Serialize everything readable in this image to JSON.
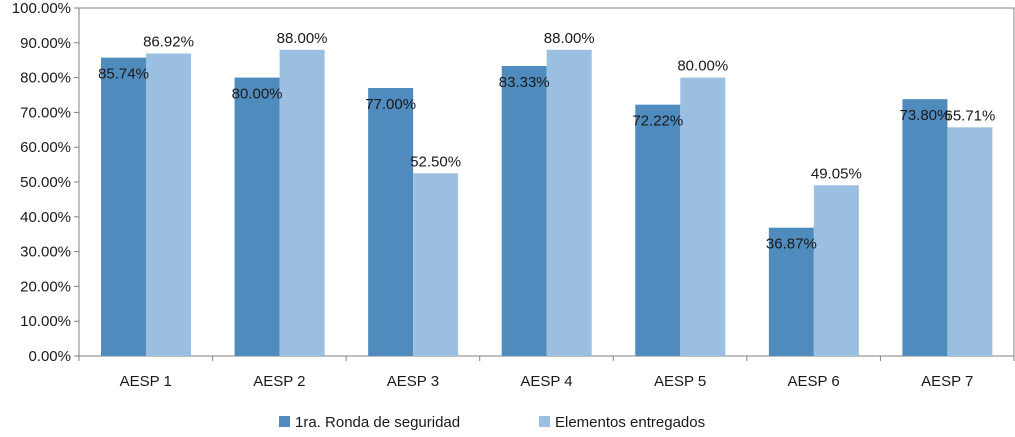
{
  "chart_data": {
    "type": "bar",
    "title": "",
    "xlabel": "",
    "ylabel": "",
    "ylim": [
      0,
      100
    ],
    "yticks": [
      0,
      10,
      20,
      30,
      40,
      50,
      60,
      70,
      80,
      90,
      100
    ],
    "ytick_labels": [
      "0.00%",
      "10.00%",
      "20.00%",
      "30.00%",
      "40.00%",
      "50.00%",
      "60.00%",
      "70.00%",
      "80.00%",
      "90.00%",
      "100.00%"
    ],
    "categories": [
      "AESP 1",
      "AESP 2",
      "AESP 3",
      "AESP 4",
      "AESP 5",
      "AESP 6",
      "AESP 7"
    ],
    "series": [
      {
        "name": "1ra. Ronda de seguridad",
        "color": "#4f8bbd",
        "values": [
          85.74,
          80.0,
          77.0,
          83.33,
          72.22,
          36.87,
          73.8
        ],
        "labels": [
          "85.74%",
          "80.00%",
          "77.00%",
          "83.33%",
          "72.22%",
          "36.87%",
          "73.80%"
        ]
      },
      {
        "name": "Elementos entregados",
        "color": "#9bbfe0",
        "values": [
          86.92,
          88.0,
          52.5,
          88.0,
          80.0,
          49.05,
          65.71
        ],
        "labels": [
          "86.92%",
          "88.00%",
          "52.50%",
          "88.00%",
          "80.00%",
          "49.05%",
          "65.71%"
        ]
      }
    ],
    "grid": false,
    "legend_position": "bottom"
  }
}
